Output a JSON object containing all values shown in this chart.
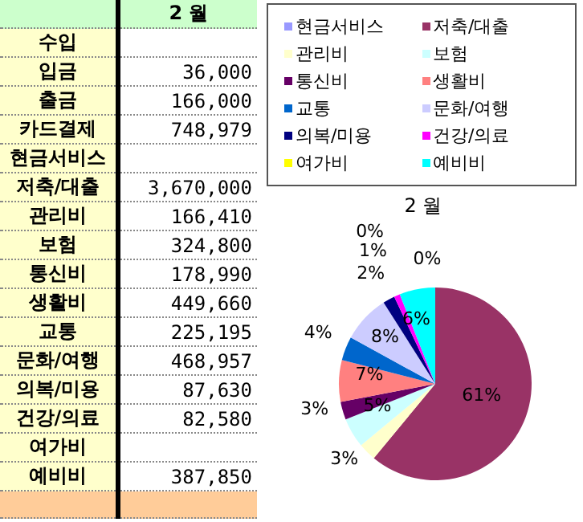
{
  "chart_data": [
    {
      "type": "other",
      "title": "2 월",
      "categories": [
        "수입",
        "입금",
        "출금",
        "카드결제",
        "현금서비스",
        "저축/대출",
        "관리비",
        "보험",
        "통신비",
        "생활비",
        "교통",
        "문화/여행",
        "의복/미용",
        "건강/의료",
        "여가비",
        "예비비"
      ],
      "values": [
        null,
        36000,
        166000,
        748979,
        null,
        3670000,
        166410,
        324800,
        178990,
        449660,
        225195,
        468957,
        87630,
        82580,
        null,
        387850
      ],
      "value_labels": [
        null,
        "36,000",
        "166,000",
        "748,979",
        null,
        "3,670,000",
        "166,410",
        "324,800",
        "178,990",
        "449,660",
        "225,195",
        "468,957",
        "87,630",
        "82,580",
        null,
        "387,850"
      ]
    },
    {
      "type": "pie",
      "title": "2 월",
      "legend": "top",
      "categories": [
        "현금서비스",
        "저축/대출",
        "관리비",
        "보험",
        "통신비",
        "생활비",
        "교통",
        "문화/여행",
        "의복/미용",
        "건강/의료",
        "여가비",
        "예비비"
      ],
      "values": [
        0,
        61,
        3,
        5,
        3,
        7,
        4,
        8,
        2,
        1,
        0,
        6
      ],
      "colors": [
        "#9999ff",
        "#993366",
        "#ffffcc",
        "#ccffff",
        "#660066",
        "#ff8080",
        "#0066cc",
        "#ccccff",
        "#000080",
        "#ff00ff",
        "#ffff00",
        "#00ffff"
      ],
      "value_labels": [
        "0%",
        "61%",
        "3%",
        "5%",
        "3%",
        "7%",
        "4%",
        "8%",
        "2%",
        "1%",
        "0%",
        "6%"
      ]
    }
  ]
}
